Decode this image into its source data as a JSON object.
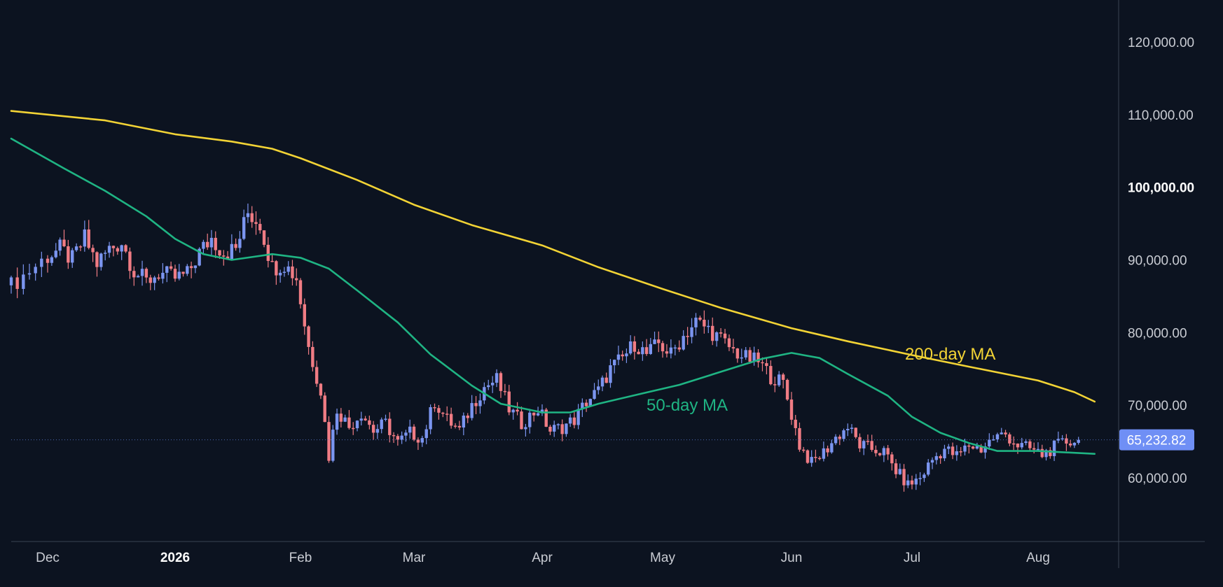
{
  "chart_data": {
    "type": "candlestick",
    "colors": {
      "background": "#0c1320",
      "up": "#7b95f0",
      "down": "#f07c84",
      "ma50": "#1fb483",
      "ma200": "#f2d335",
      "price_tag": "#6f8ff5",
      "axis": "#3a4352"
    },
    "y_axis": {
      "ticks": [
        60000,
        70000,
        80000,
        90000,
        100000,
        110000,
        120000
      ],
      "tick_labels": [
        "60,000.00",
        "70,000.00",
        "80,000.00",
        "90,000.00",
        "100,000.00",
        "110,000.00",
        "120,000.00"
      ],
      "bold_tick": "100,000.00",
      "side": "right"
    },
    "x_axis": {
      "labels": [
        "Dec",
        "2026",
        "Feb",
        "Mar",
        "Apr",
        "May",
        "Jun",
        "Jul",
        "Aug"
      ],
      "label_dates": [
        "2025-12-01",
        "2026-01-01",
        "2026-02-01",
        "2026-03-01",
        "2026-04-01",
        "2026-05-01",
        "2026-06-01",
        "2026-07-01",
        "2026-08-01"
      ],
      "bold_label": "2026",
      "range": [
        "2025-11-25",
        "2026-08-27"
      ]
    },
    "last_price": {
      "value": 65232.82,
      "label": "65,232.82"
    },
    "series_labels": {
      "ma200": "200-day MA",
      "ma50": "50-day MA"
    },
    "ma200": [
      [
        "2025-11-25",
        110500
      ],
      [
        "2025-12-15",
        109200
      ],
      [
        "2026-01-01",
        107300
      ],
      [
        "2026-01-15",
        106300
      ],
      [
        "2026-01-25",
        105300
      ],
      [
        "2026-02-01",
        104000
      ],
      [
        "2026-02-15",
        101000
      ],
      [
        "2026-03-01",
        97600
      ],
      [
        "2026-03-15",
        94800
      ],
      [
        "2026-04-01",
        92000
      ],
      [
        "2026-04-15",
        89000
      ],
      [
        "2026-05-01",
        86000
      ],
      [
        "2026-05-15",
        83400
      ],
      [
        "2026-06-01",
        80600
      ],
      [
        "2026-06-15",
        78800
      ],
      [
        "2026-07-01",
        76900
      ],
      [
        "2026-07-15",
        75300
      ],
      [
        "2026-08-01",
        73400
      ],
      [
        "2026-08-10",
        71800
      ],
      [
        "2026-08-15",
        70500
      ]
    ],
    "ma50": [
      [
        "2025-11-25",
        106700
      ],
      [
        "2025-12-05",
        102600
      ],
      [
        "2025-12-15",
        99500
      ],
      [
        "2025-12-25",
        96000
      ],
      [
        "2026-01-01",
        92900
      ],
      [
        "2026-01-08",
        90800
      ],
      [
        "2026-01-15",
        90000
      ],
      [
        "2026-01-25",
        90800
      ],
      [
        "2026-02-01",
        90300
      ],
      [
        "2026-02-08",
        88800
      ],
      [
        "2026-02-15",
        85800
      ],
      [
        "2026-02-25",
        81400
      ],
      [
        "2026-03-05",
        77000
      ],
      [
        "2026-03-15",
        72700
      ],
      [
        "2026-03-22",
        70200
      ],
      [
        "2026-04-01",
        69000
      ],
      [
        "2026-04-08",
        69000
      ],
      [
        "2026-04-15",
        70200
      ],
      [
        "2026-04-25",
        71500
      ],
      [
        "2026-05-05",
        72800
      ],
      [
        "2026-05-15",
        74600
      ],
      [
        "2026-05-25",
        76400
      ],
      [
        "2026-06-01",
        77200
      ],
      [
        "2026-06-08",
        76500
      ],
      [
        "2026-06-15",
        74300
      ],
      [
        "2026-06-25",
        71300
      ],
      [
        "2026-07-01",
        68400
      ],
      [
        "2026-07-08",
        66200
      ],
      [
        "2026-07-15",
        64800
      ],
      [
        "2026-07-22",
        63700
      ],
      [
        "2026-08-01",
        63700
      ],
      [
        "2026-08-15",
        63300
      ]
    ],
    "close": [
      [
        "2025-11-25",
        86500
      ],
      [
        "2025-11-28",
        88500
      ],
      [
        "2025-12-01",
        90500
      ],
      [
        "2025-12-04",
        91500
      ],
      [
        "2025-12-07",
        90000
      ],
      [
        "2025-12-10",
        93000
      ],
      [
        "2025-12-13",
        89500
      ],
      [
        "2025-12-16",
        91500
      ],
      [
        "2025-12-19",
        92500
      ],
      [
        "2025-12-22",
        88500
      ],
      [
        "2025-12-25",
        87000
      ],
      [
        "2025-12-28",
        88200
      ],
      [
        "2026-01-01",
        87500
      ],
      [
        "2026-01-04",
        88000
      ],
      [
        "2026-01-07",
        91000
      ],
      [
        "2026-01-10",
        93000
      ],
      [
        "2026-01-13",
        91000
      ],
      [
        "2026-01-16",
        91500
      ],
      [
        "2026-01-19",
        96500
      ],
      [
        "2026-01-22",
        95000
      ],
      [
        "2026-01-25",
        89000
      ],
      [
        "2026-01-28",
        89500
      ],
      [
        "2026-01-31",
        87500
      ],
      [
        "2026-02-03",
        78000
      ],
      [
        "2026-02-06",
        72000
      ],
      [
        "2026-02-08",
        63000
      ],
      [
        "2026-02-10",
        69500
      ],
      [
        "2026-02-13",
        67000
      ],
      [
        "2026-02-16",
        69000
      ],
      [
        "2026-02-19",
        66500
      ],
      [
        "2026-02-22",
        67500
      ],
      [
        "2026-02-25",
        64800
      ],
      [
        "2026-02-28",
        66200
      ],
      [
        "2026-03-03",
        65500
      ],
      [
        "2026-03-06",
        70500
      ],
      [
        "2026-03-09",
        68000
      ],
      [
        "2026-03-12",
        66500
      ],
      [
        "2026-03-15",
        70000
      ],
      [
        "2026-03-18",
        72500
      ],
      [
        "2026-03-21",
        73500
      ],
      [
        "2026-03-24",
        69500
      ],
      [
        "2026-03-27",
        67500
      ],
      [
        "2026-03-31",
        69500
      ],
      [
        "2026-04-03",
        66500
      ],
      [
        "2026-04-06",
        67000
      ],
      [
        "2026-04-09",
        68000
      ],
      [
        "2026-04-12",
        70500
      ],
      [
        "2026-04-15",
        72000
      ],
      [
        "2026-04-18",
        75000
      ],
      [
        "2026-04-21",
        76500
      ],
      [
        "2026-04-24",
        78500
      ],
      [
        "2026-04-27",
        77000
      ],
      [
        "2026-04-30",
        78500
      ],
      [
        "2026-05-03",
        77000
      ],
      [
        "2026-05-06",
        79500
      ],
      [
        "2026-05-09",
        81500
      ],
      [
        "2026-05-12",
        80500
      ],
      [
        "2026-05-15",
        79000
      ],
      [
        "2026-05-18",
        77500
      ],
      [
        "2026-05-21",
        76500
      ],
      [
        "2026-05-24",
        76000
      ],
      [
        "2026-05-27",
        74000
      ],
      [
        "2026-05-30",
        73000
      ],
      [
        "2026-06-03",
        64500
      ],
      [
        "2026-06-06",
        62000
      ],
      [
        "2026-06-09",
        63500
      ],
      [
        "2026-06-12",
        65500
      ],
      [
        "2026-06-15",
        67000
      ],
      [
        "2026-06-18",
        64500
      ],
      [
        "2026-06-21",
        64000
      ],
      [
        "2026-06-24",
        63500
      ],
      [
        "2026-06-27",
        61000
      ],
      [
        "2026-06-30",
        59000
      ],
      [
        "2026-07-03",
        60000
      ],
      [
        "2026-07-06",
        62500
      ],
      [
        "2026-07-09",
        64000
      ],
      [
        "2026-07-12",
        63000
      ],
      [
        "2026-07-15",
        64500
      ],
      [
        "2026-07-18",
        64000
      ],
      [
        "2026-07-21",
        65500
      ],
      [
        "2026-07-24",
        66000
      ],
      [
        "2026-07-27",
        64500
      ],
      [
        "2026-07-30",
        64000
      ],
      [
        "2026-08-02",
        63200
      ],
      [
        "2026-08-05",
        64200
      ],
      [
        "2026-08-08",
        65000
      ],
      [
        "2026-08-11",
        65232.82
      ]
    ]
  }
}
